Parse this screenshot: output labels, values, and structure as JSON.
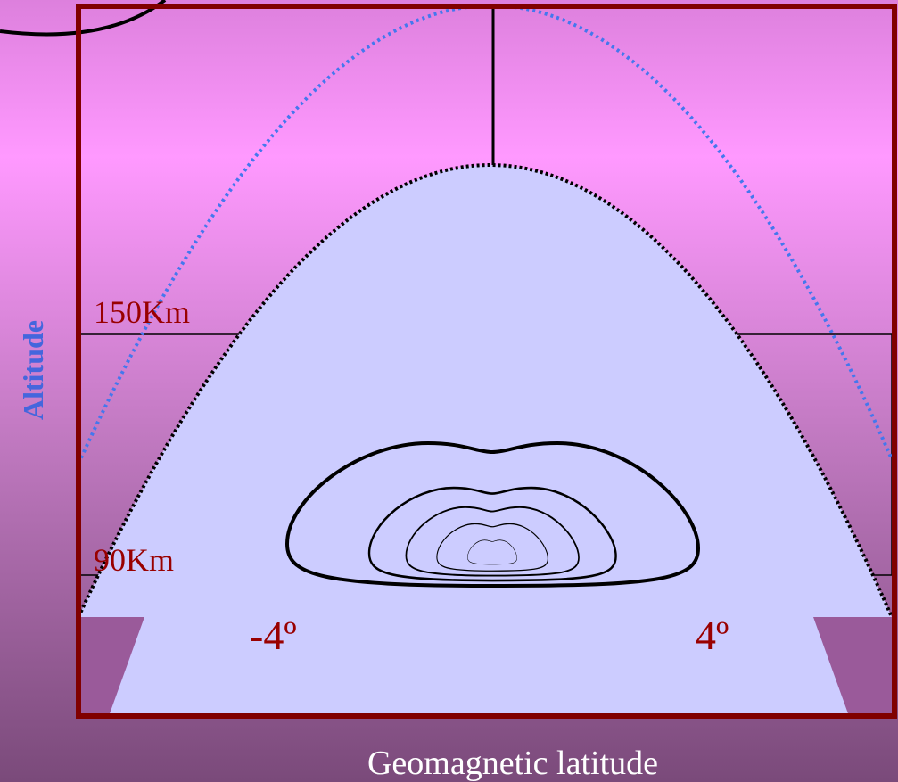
{
  "labels": {
    "upper_altitude": "150Km",
    "lower_altitude": "90Km",
    "left_latitude": "-4º",
    "right_latitude": "4º"
  },
  "axes": {
    "y_label": "Altitude",
    "x_label": "Geomagnetic latitude"
  }
}
